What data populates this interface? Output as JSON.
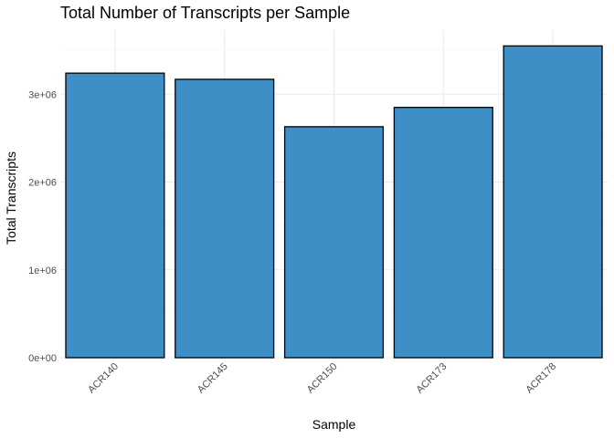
{
  "chart_data": {
    "type": "bar",
    "title": "Total Number of Transcripts per Sample",
    "xlabel": "Sample",
    "ylabel": "Total Transcripts",
    "categories": [
      "ACR140",
      "ACR145",
      "ACR150",
      "ACR173",
      "ACR178"
    ],
    "values": [
      3240000,
      3170000,
      2630000,
      2850000,
      3550000
    ],
    "ylim": [
      0,
      3730000
    ],
    "yticks": [
      0,
      1000000,
      2000000,
      3000000
    ],
    "ytick_labels": [
      "0e+00",
      "1e+06",
      "2e+06",
      "3e+06"
    ],
    "grid": true,
    "legend": "none",
    "bar_color": "#3f8fc7",
    "bar_edge_color": "#000000"
  }
}
